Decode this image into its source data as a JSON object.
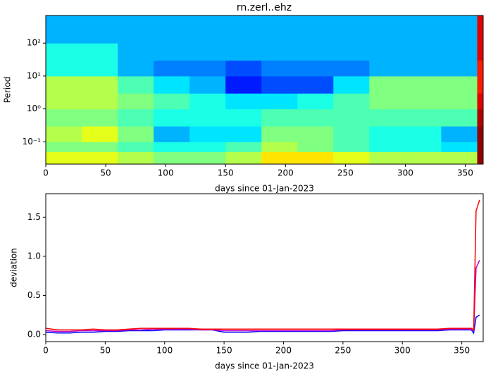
{
  "chart_data": [
    {
      "type": "heatmap",
      "title": "rn.zerl..ehz",
      "xlabel": "days since 01-Jan-2023",
      "ylabel": "Period",
      "colormap": "jet",
      "ylog": true,
      "xlim": [
        0,
        365
      ],
      "xticks": [
        0,
        50,
        100,
        150,
        200,
        250,
        300,
        350
      ],
      "ylim": [
        0.021,
        690
      ],
      "yticks": [
        {
          "value": 0.1,
          "label": "10⁻¹"
        },
        {
          "value": 1,
          "label": "10⁰"
        },
        {
          "value": 10,
          "label": "10¹"
        },
        {
          "value": 100,
          "label": "10²"
        }
      ],
      "x_bins": [
        0,
        30,
        60,
        90,
        120,
        150,
        180,
        210,
        240,
        270,
        300,
        330,
        360,
        365
      ],
      "y_bins": [
        0.021,
        0.05,
        0.1,
        0.3,
        1,
        3,
        10,
        30,
        100,
        690
      ],
      "z": [
        [
          0.6,
          0.6,
          0.55,
          0.5,
          0.5,
          0.55,
          0.65,
          0.65,
          0.6,
          0.55,
          0.55,
          0.55,
          0.98
        ],
        [
          0.5,
          0.5,
          0.45,
          0.4,
          0.4,
          0.45,
          0.55,
          0.5,
          0.45,
          0.4,
          0.4,
          0.35,
          0.98
        ],
        [
          0.55,
          0.6,
          0.5,
          0.3,
          0.35,
          0.35,
          0.5,
          0.5,
          0.45,
          0.4,
          0.4,
          0.3,
          0.98
        ],
        [
          0.5,
          0.5,
          0.45,
          0.4,
          0.4,
          0.4,
          0.45,
          0.45,
          0.45,
          0.45,
          0.45,
          0.45,
          0.95
        ],
        [
          0.55,
          0.55,
          0.5,
          0.45,
          0.4,
          0.35,
          0.35,
          0.4,
          0.45,
          0.5,
          0.5,
          0.5,
          0.9
        ],
        [
          0.55,
          0.55,
          0.45,
          0.35,
          0.3,
          0.15,
          0.2,
          0.2,
          0.35,
          0.5,
          0.5,
          0.5,
          0.85
        ],
        [
          0.4,
          0.4,
          0.3,
          0.25,
          0.25,
          0.2,
          0.25,
          0.25,
          0.25,
          0.3,
          0.3,
          0.3,
          0.85
        ],
        [
          0.4,
          0.4,
          0.3,
          0.3,
          0.3,
          0.3,
          0.3,
          0.3,
          0.3,
          0.3,
          0.3,
          0.3,
          0.9
        ],
        [
          0.3,
          0.3,
          0.3,
          0.3,
          0.3,
          0.3,
          0.3,
          0.3,
          0.3,
          0.3,
          0.3,
          0.3,
          0.9
        ]
      ]
    },
    {
      "type": "line",
      "xlabel": "days since 01-Jan-2023",
      "ylabel": "deviation",
      "xlim": [
        0,
        368
      ],
      "xticks": [
        0,
        50,
        100,
        150,
        200,
        250,
        300,
        350
      ],
      "ylim": [
        -0.09,
        1.8
      ],
      "yticks": [
        {
          "value": 0,
          "label": "0.0"
        },
        {
          "value": 0.5,
          "label": "0.5"
        },
        {
          "value": 1,
          "label": "1.0"
        },
        {
          "value": 1.5,
          "label": "1.5"
        }
      ],
      "x": [
        0,
        10,
        20,
        30,
        40,
        50,
        60,
        70,
        80,
        90,
        100,
        110,
        120,
        130,
        140,
        150,
        160,
        170,
        180,
        190,
        200,
        210,
        220,
        230,
        240,
        250,
        260,
        270,
        280,
        290,
        300,
        310,
        320,
        330,
        340,
        350,
        358,
        360,
        362,
        365
      ],
      "series": [
        {
          "color": "#0000ff",
          "values": [
            0.03,
            0.02,
            0.02,
            0.03,
            0.03,
            0.04,
            0.04,
            0.05,
            0.05,
            0.05,
            0.06,
            0.06,
            0.06,
            0.06,
            0.06,
            0.03,
            0.03,
            0.03,
            0.04,
            0.04,
            0.04,
            0.04,
            0.04,
            0.04,
            0.04,
            0.05,
            0.05,
            0.05,
            0.05,
            0.05,
            0.05,
            0.05,
            0.05,
            0.05,
            0.06,
            0.06,
            0.06,
            0.02,
            0.22,
            0.25
          ]
        },
        {
          "color": "#bf00bf",
          "values": [
            0.05,
            0.04,
            0.04,
            0.05,
            0.05,
            0.05,
            0.05,
            0.06,
            0.06,
            0.07,
            0.07,
            0.07,
            0.07,
            0.06,
            0.06,
            0.05,
            0.05,
            0.05,
            0.05,
            0.05,
            0.05,
            0.05,
            0.05,
            0.05,
            0.05,
            0.06,
            0.06,
            0.06,
            0.06,
            0.06,
            0.06,
            0.06,
            0.06,
            0.06,
            0.07,
            0.07,
            0.07,
            0.05,
            0.85,
            0.95
          ]
        },
        {
          "color": "#ff0000",
          "values": [
            0.08,
            0.06,
            0.06,
            0.06,
            0.07,
            0.06,
            0.06,
            0.07,
            0.08,
            0.08,
            0.08,
            0.08,
            0.08,
            0.07,
            0.07,
            0.07,
            0.07,
            0.07,
            0.07,
            0.07,
            0.07,
            0.07,
            0.07,
            0.07,
            0.07,
            0.07,
            0.07,
            0.07,
            0.07,
            0.07,
            0.07,
            0.07,
            0.07,
            0.07,
            0.08,
            0.08,
            0.08,
            0.06,
            1.58,
            1.72
          ]
        }
      ]
    }
  ]
}
